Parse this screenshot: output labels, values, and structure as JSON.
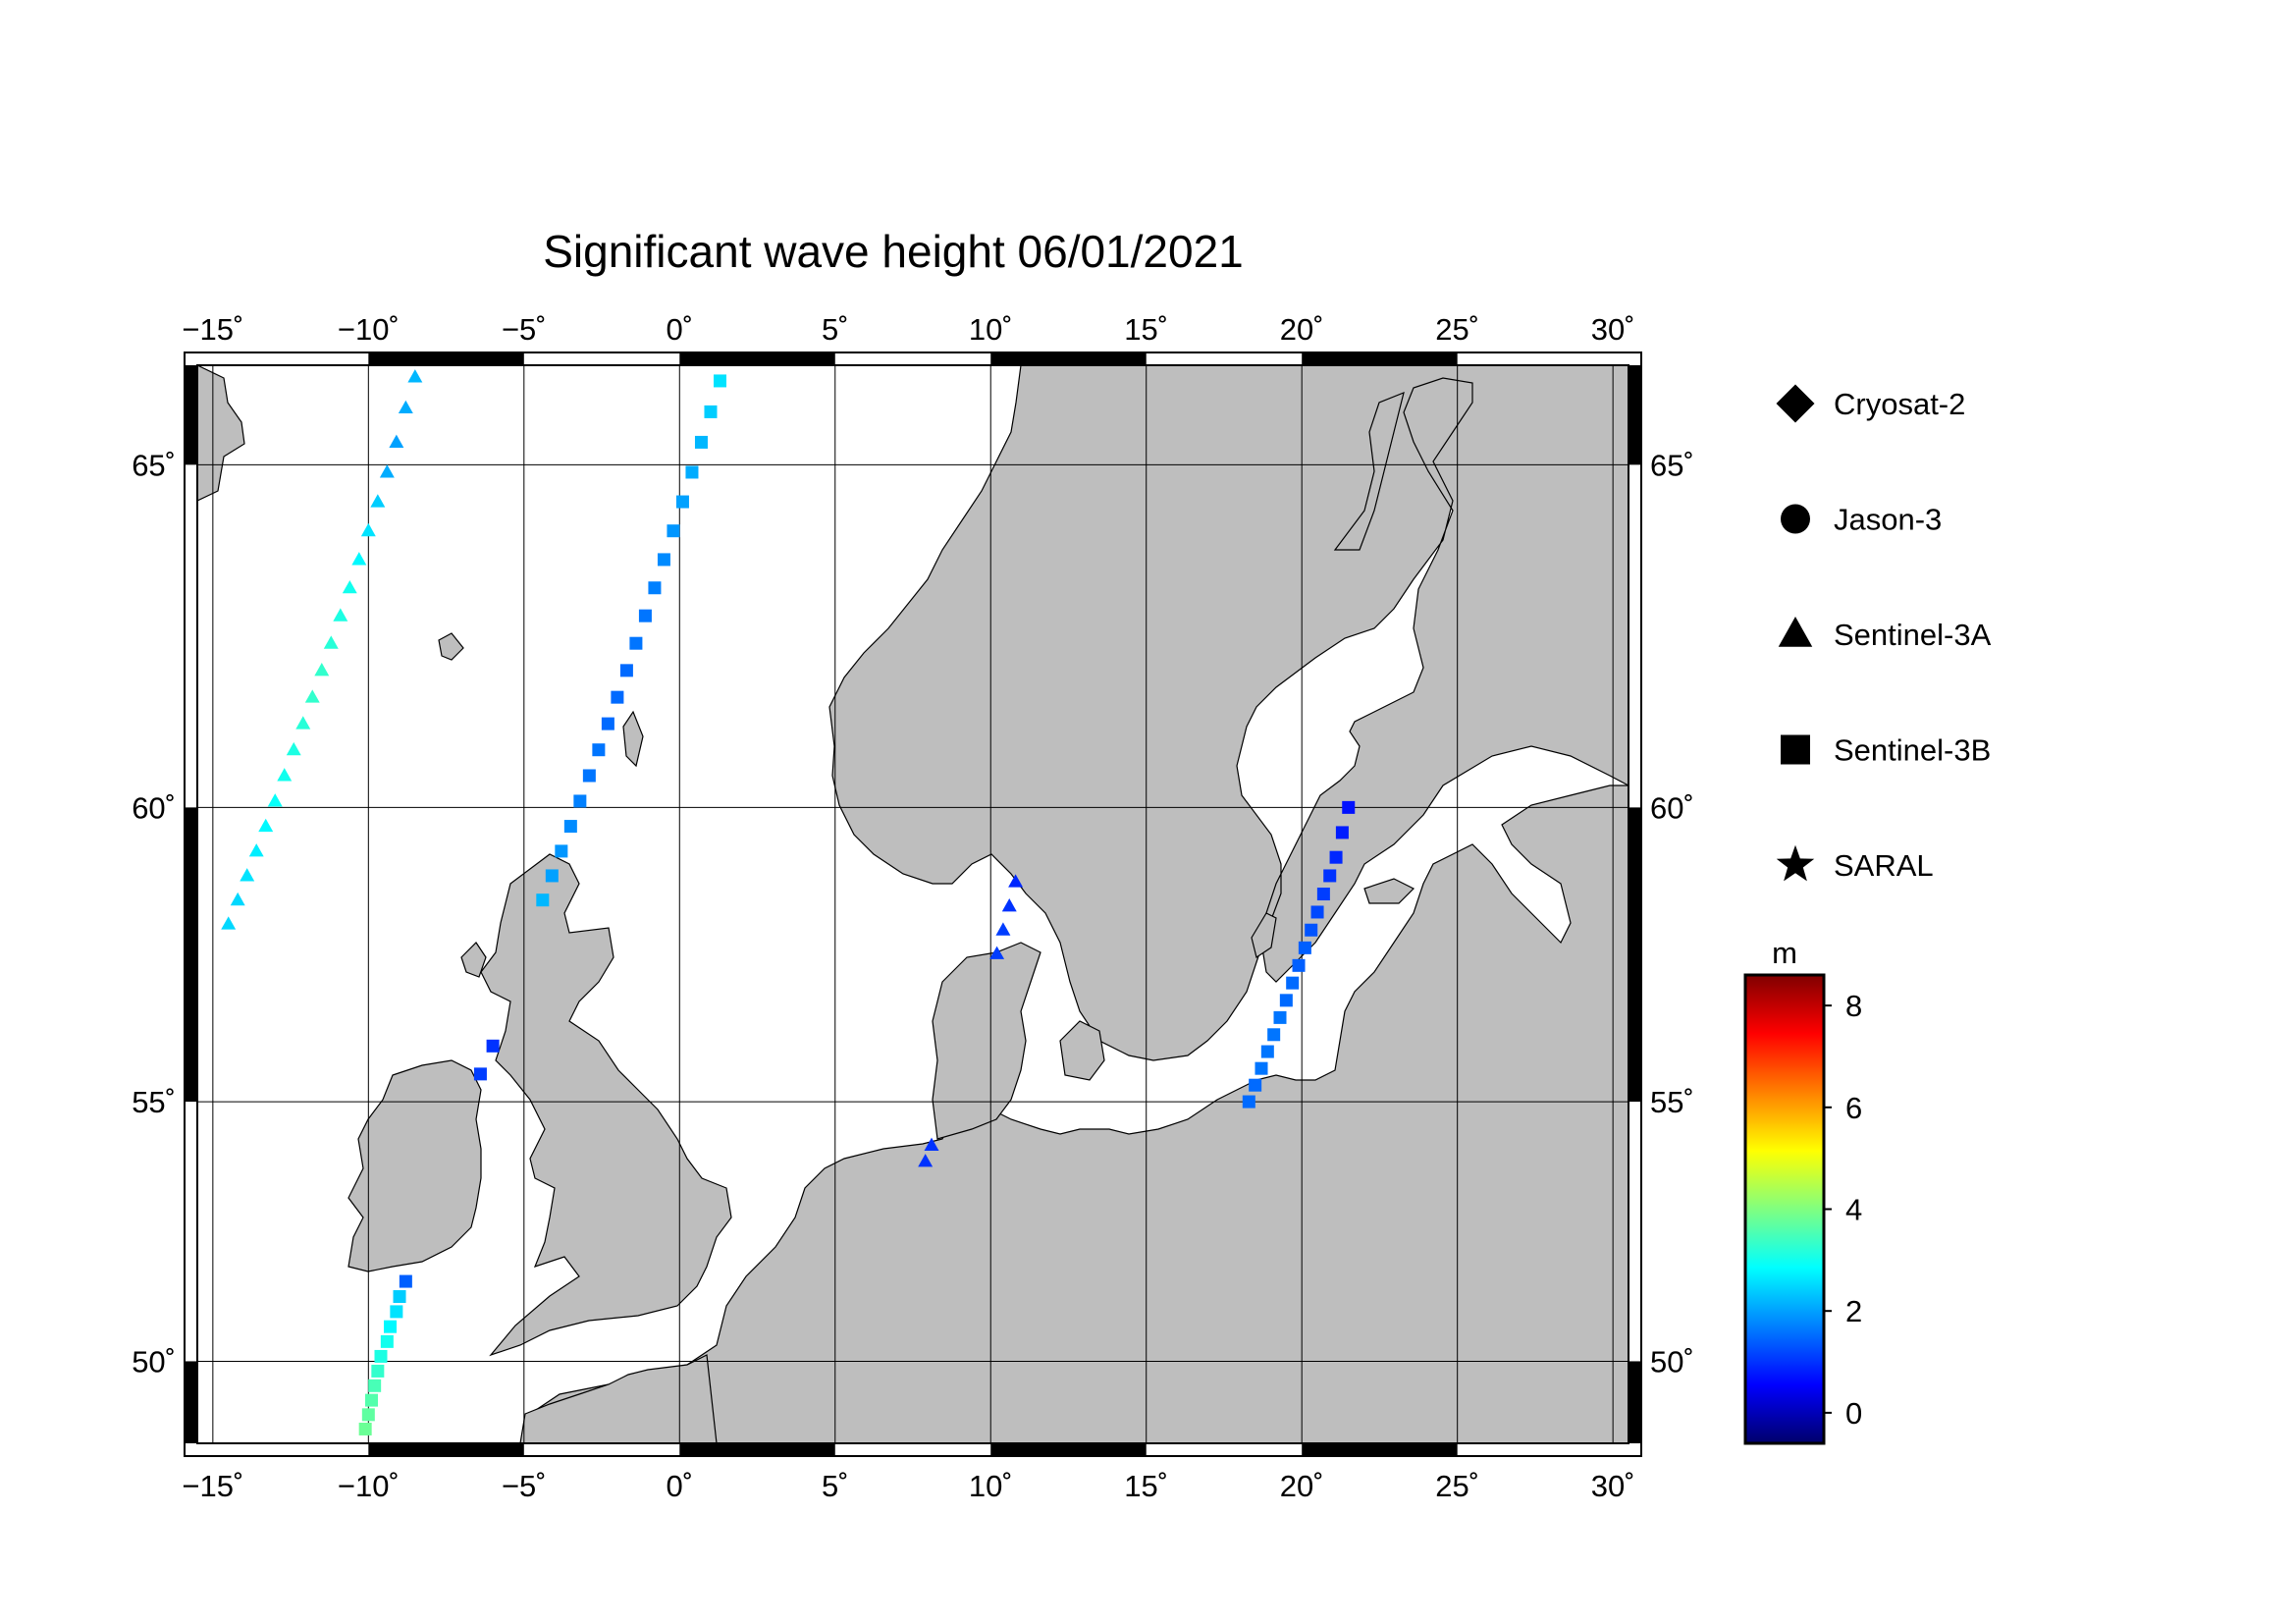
{
  "title": "Significant wave height 06/01/2021",
  "legend": [
    {
      "name": "Cryosat-2",
      "symbol": "diamond"
    },
    {
      "name": "Jason-3",
      "symbol": "circle"
    },
    {
      "name": "Sentinel-3A",
      "symbol": "triangle"
    },
    {
      "name": "Sentinel-3B",
      "symbol": "square"
    },
    {
      "name": "SARAL",
      "symbol": "star"
    }
  ],
  "colorbar": {
    "unit": "m",
    "range": [
      -0.6,
      8.6
    ],
    "ticks": [
      "0",
      "2",
      "4",
      "6",
      "8"
    ],
    "colormap": [
      "#00006b",
      "#0000ff",
      "#0080ff",
      "#00ffff",
      "#80ff80",
      "#ffff00",
      "#ff8000",
      "#ff0000",
      "#800000"
    ]
  },
  "axes": {
    "lon_range": [
      -15.5,
      30.5
    ],
    "lat_range": [
      48.3,
      66.3
    ],
    "lon_ticks": [
      "−15˚",
      "−10˚",
      "−5˚",
      "0˚",
      "5˚",
      "10˚",
      "15˚",
      "20˚",
      "25˚",
      "30˚"
    ],
    "lat_ticks": [
      "50˚",
      "55˚",
      "60˚",
      "65˚"
    ],
    "grid": true
  },
  "chart_data": {
    "type": "scatter",
    "title": "Significant wave height 06/01/2021",
    "xlabel": "",
    "ylabel": "",
    "xlim": [
      -15.5,
      30.5
    ],
    "ylim": [
      48.3,
      66.3
    ],
    "series": [
      {
        "name": "Sentinel-3A",
        "symbol": "triangle",
        "points": [
          {
            "lon": -8.5,
            "lat": 66.15,
            "swh": 2.2
          },
          {
            "lon": -8.8,
            "lat": 65.75,
            "swh": 2.1
          },
          {
            "lon": -9.1,
            "lat": 65.3,
            "swh": 2.0
          },
          {
            "lon": -9.4,
            "lat": 64.9,
            "swh": 2.1
          },
          {
            "lon": -9.7,
            "lat": 64.5,
            "swh": 2.4
          },
          {
            "lon": -10.0,
            "lat": 64.1,
            "swh": 2.6
          },
          {
            "lon": -10.3,
            "lat": 63.7,
            "swh": 2.8
          },
          {
            "lon": -10.6,
            "lat": 63.3,
            "swh": 3.0
          },
          {
            "lon": -10.9,
            "lat": 62.9,
            "swh": 3.1
          },
          {
            "lon": -11.2,
            "lat": 62.5,
            "swh": 3.2
          },
          {
            "lon": -11.5,
            "lat": 62.1,
            "swh": 3.3
          },
          {
            "lon": -11.8,
            "lat": 61.7,
            "swh": 3.3
          },
          {
            "lon": -12.1,
            "lat": 61.3,
            "swh": 3.2
          },
          {
            "lon": -12.4,
            "lat": 60.9,
            "swh": 3.1
          },
          {
            "lon": -12.7,
            "lat": 60.5,
            "swh": 3.0
          },
          {
            "lon": -13.0,
            "lat": 60.1,
            "swh": 2.9
          },
          {
            "lon": -13.3,
            "lat": 59.7,
            "swh": 2.8
          },
          {
            "lon": -13.6,
            "lat": 59.3,
            "swh": 2.7
          },
          {
            "lon": -13.9,
            "lat": 58.9,
            "swh": 2.6
          },
          {
            "lon": -14.2,
            "lat": 58.5,
            "swh": 2.5
          },
          {
            "lon": -14.5,
            "lat": 58.1,
            "swh": 2.5
          },
          {
            "lon": 10.8,
            "lat": 58.8,
            "swh": 0.9
          },
          {
            "lon": 10.6,
            "lat": 58.4,
            "swh": 1.0
          },
          {
            "lon": 10.4,
            "lat": 58.0,
            "swh": 1.1
          },
          {
            "lon": 10.2,
            "lat": 57.6,
            "swh": 1.1
          },
          {
            "lon": 8.1,
            "lat": 54.2,
            "swh": 1.0
          },
          {
            "lon": 7.9,
            "lat": 53.9,
            "swh": 1.0
          }
        ]
      },
      {
        "name": "Sentinel-3B",
        "symbol": "square",
        "points": [
          {
            "lon": 1.3,
            "lat": 66.1,
            "swh": 2.6
          },
          {
            "lon": 1.0,
            "lat": 65.7,
            "swh": 2.4
          },
          {
            "lon": 0.7,
            "lat": 65.3,
            "swh": 2.2
          },
          {
            "lon": 0.4,
            "lat": 64.9,
            "swh": 2.1
          },
          {
            "lon": 0.1,
            "lat": 64.5,
            "swh": 2.0
          },
          {
            "lon": -0.2,
            "lat": 64.1,
            "swh": 1.9
          },
          {
            "lon": -0.5,
            "lat": 63.7,
            "swh": 1.8
          },
          {
            "lon": -0.8,
            "lat": 63.3,
            "swh": 1.7
          },
          {
            "lon": -1.1,
            "lat": 62.9,
            "swh": 1.6
          },
          {
            "lon": -1.4,
            "lat": 62.5,
            "swh": 1.6
          },
          {
            "lon": -1.7,
            "lat": 62.1,
            "swh": 1.5
          },
          {
            "lon": -2.0,
            "lat": 61.7,
            "swh": 1.5
          },
          {
            "lon": -2.3,
            "lat": 61.3,
            "swh": 1.5
          },
          {
            "lon": -2.6,
            "lat": 60.9,
            "swh": 1.6
          },
          {
            "lon": -2.9,
            "lat": 60.5,
            "swh": 1.6
          },
          {
            "lon": -3.2,
            "lat": 60.1,
            "swh": 1.7
          },
          {
            "lon": -3.5,
            "lat": 59.7,
            "swh": 1.8
          },
          {
            "lon": -3.8,
            "lat": 59.3,
            "swh": 1.9
          },
          {
            "lon": -4.1,
            "lat": 58.9,
            "swh": 2.0
          },
          {
            "lon": -4.4,
            "lat": 58.5,
            "swh": 2.2
          },
          {
            "lon": -6.0,
            "lat": 56.0,
            "swh": 1.0
          },
          {
            "lon": -6.4,
            "lat": 55.5,
            "swh": 1.1
          },
          {
            "lon": -8.8,
            "lat": 51.6,
            "swh": 1.4
          },
          {
            "lon": -9.0,
            "lat": 51.3,
            "swh": 2.4
          },
          {
            "lon": -9.1,
            "lat": 51.0,
            "swh": 2.6
          },
          {
            "lon": -9.3,
            "lat": 50.7,
            "swh": 2.8
          },
          {
            "lon": -9.4,
            "lat": 50.4,
            "swh": 3.0
          },
          {
            "lon": -9.6,
            "lat": 50.1,
            "swh": 3.1
          },
          {
            "lon": -9.7,
            "lat": 49.8,
            "swh": 3.3
          },
          {
            "lon": -9.8,
            "lat": 49.5,
            "swh": 3.5
          },
          {
            "lon": -9.9,
            "lat": 49.2,
            "swh": 3.6
          },
          {
            "lon": -10.0,
            "lat": 48.9,
            "swh": 3.7
          },
          {
            "lon": -10.1,
            "lat": 48.6,
            "swh": 3.8
          },
          {
            "lon": 21.5,
            "lat": 60.0,
            "swh": 0.7
          },
          {
            "lon": 21.3,
            "lat": 59.6,
            "swh": 0.8
          },
          {
            "lon": 21.1,
            "lat": 59.2,
            "swh": 0.9
          },
          {
            "lon": 20.9,
            "lat": 58.9,
            "swh": 1.0
          },
          {
            "lon": 20.7,
            "lat": 58.6,
            "swh": 1.1
          },
          {
            "lon": 20.5,
            "lat": 58.3,
            "swh": 1.2
          },
          {
            "lon": 20.3,
            "lat": 58.0,
            "swh": 1.3
          },
          {
            "lon": 20.1,
            "lat": 57.7,
            "swh": 1.4
          },
          {
            "lon": 19.9,
            "lat": 57.4,
            "swh": 1.4
          },
          {
            "lon": 19.7,
            "lat": 57.1,
            "swh": 1.5
          },
          {
            "lon": 19.5,
            "lat": 56.8,
            "swh": 1.5
          },
          {
            "lon": 19.3,
            "lat": 56.5,
            "swh": 1.6
          },
          {
            "lon": 19.1,
            "lat": 56.2,
            "swh": 1.6
          },
          {
            "lon": 18.9,
            "lat": 55.9,
            "swh": 1.6
          },
          {
            "lon": 18.7,
            "lat": 55.6,
            "swh": 1.6
          },
          {
            "lon": 18.5,
            "lat": 55.3,
            "swh": 1.5
          },
          {
            "lon": 18.3,
            "lat": 55.0,
            "swh": 1.5
          }
        ]
      }
    ]
  }
}
